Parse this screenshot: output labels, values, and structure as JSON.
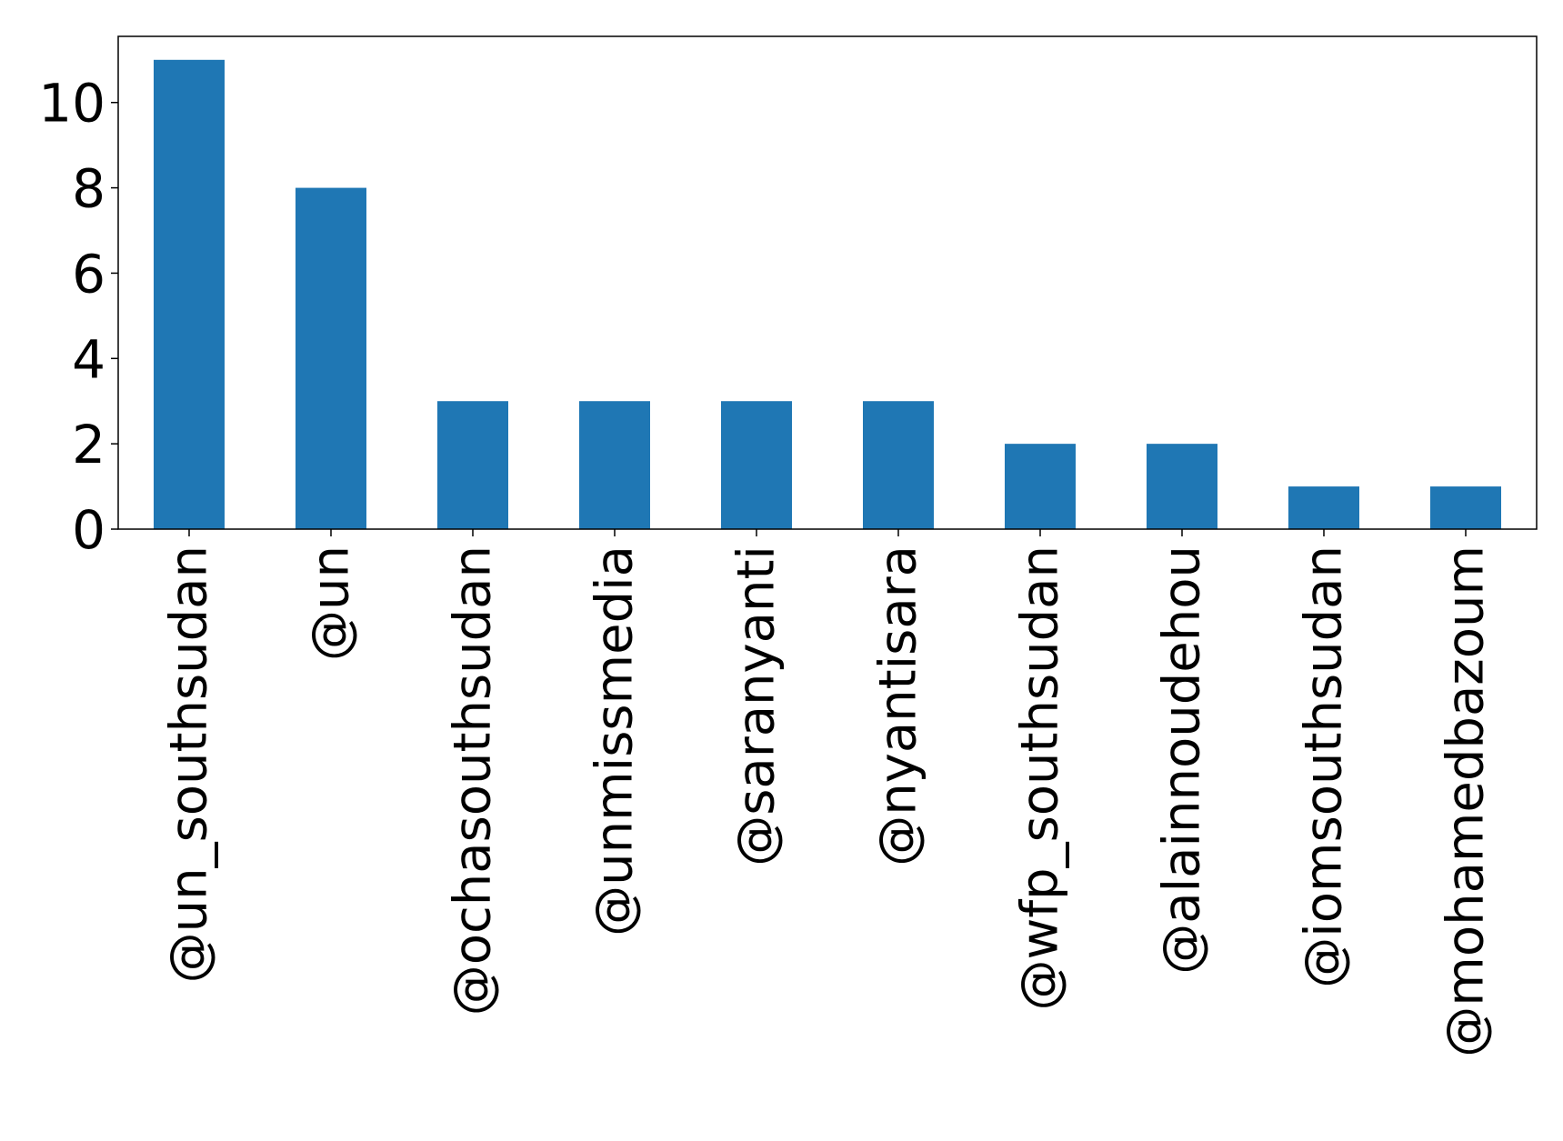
{
  "chart_data": {
    "type": "bar",
    "title": "",
    "xlabel": "",
    "ylabel": "",
    "categories": [
      "@un_southsudan",
      "@un",
      "@ochasouthsudan",
      "@unmissmedia",
      "@saranyanti",
      "@nyantisara",
      "@wfp_southsudan",
      "@alainnoudehou",
      "@iomsouthsudan",
      "@mohamedbazoum"
    ],
    "values": [
      11,
      8,
      3,
      3,
      3,
      3,
      2,
      2,
      1,
      1
    ],
    "ylim": [
      0,
      11.55
    ],
    "yticks": [
      0,
      2,
      4,
      6,
      8,
      10
    ],
    "grid": false,
    "legend": "none",
    "bar_color": "#1f77b4"
  }
}
